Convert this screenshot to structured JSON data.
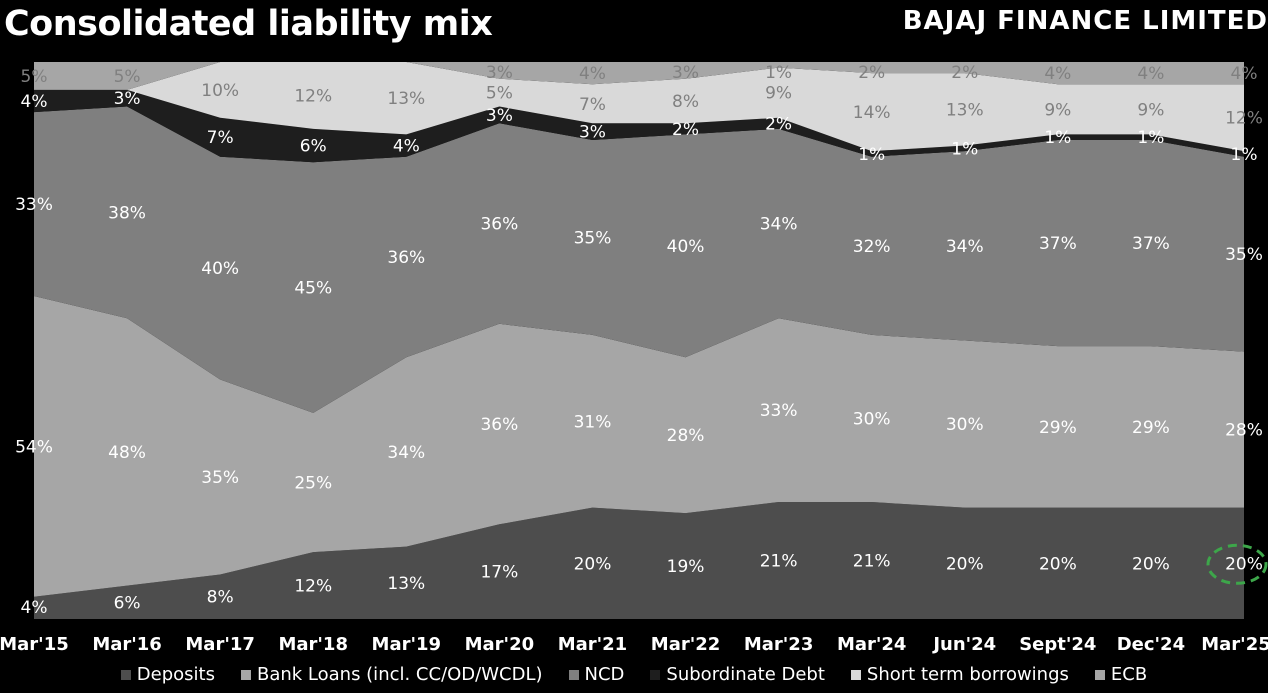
{
  "header": {
    "title": "Consolidated liability mix",
    "brand": "BAJAJ FINANCE LIMITED"
  },
  "chart_data": {
    "type": "area",
    "stacked": true,
    "normalized_percent": true,
    "categories": [
      "Mar'15",
      "Mar'16",
      "Mar'17",
      "Mar'18",
      "Mar'19",
      "Mar'20",
      "Mar'21",
      "Mar'22",
      "Mar'23",
      "Mar'24",
      "Jun'24",
      "Sept'24",
      "Dec'24",
      "Mar'25"
    ],
    "series": [
      {
        "name": "Deposits",
        "color": "#4d4d4d",
        "label_color": "#ffffff",
        "values": [
          4,
          6,
          8,
          12,
          13,
          17,
          20,
          19,
          21,
          21,
          20,
          20,
          20,
          20
        ],
        "labels": [
          "4%",
          "6%",
          "8%",
          "12%",
          "13%",
          "17%",
          "20%",
          "19%",
          "21%",
          "21%",
          "20%",
          "20%",
          "20%",
          "20%"
        ]
      },
      {
        "name": "Bank Loans (incl. CC/OD/WCDL)",
        "color": "#a6a6a6",
        "label_color": "#ffffff",
        "values": [
          54,
          48,
          35,
          25,
          34,
          36,
          31,
          28,
          33,
          30,
          30,
          29,
          29,
          28
        ],
        "labels": [
          "54%",
          "48%",
          "35%",
          "25%",
          "34%",
          "36%",
          "31%",
          "28%",
          "33%",
          "30%",
          "30%",
          "29%",
          "29%",
          "28%"
        ]
      },
      {
        "name": "NCD",
        "color": "#7f7f7f",
        "label_color": "#ffffff",
        "values": [
          33,
          38,
          40,
          45,
          36,
          36,
          35,
          40,
          34,
          32,
          34,
          37,
          37,
          35
        ],
        "labels": [
          "33%",
          "38%",
          "40%",
          "45%",
          "36%",
          "36%",
          "35%",
          "40%",
          "34%",
          "32%",
          "34%",
          "37%",
          "37%",
          "35%"
        ]
      },
      {
        "name": "Subordinate Debt",
        "color": "#1e1e1e",
        "label_color": "#ffffff",
        "values": [
          4,
          3,
          7,
          6,
          4,
          3,
          3,
          2,
          2,
          1,
          1,
          1,
          1,
          1
        ],
        "labels": [
          "4%",
          "3%",
          "7%",
          "6%",
          "4%",
          "3%",
          "3%",
          "2%",
          "2%",
          "1%",
          "1%",
          "1%",
          "1%",
          "1%"
        ]
      },
      {
        "name": "Short term borrowings",
        "color": "#d9d9d9",
        "label_color": "#808080",
        "values": [
          0,
          0,
          10,
          12,
          13,
          5,
          7,
          8,
          9,
          14,
          13,
          9,
          9,
          12
        ],
        "labels": [
          "",
          "",
          "10%",
          "12%",
          "13%",
          "5%",
          "7%",
          "8%",
          "9%",
          "14%",
          "13%",
          "9%",
          "9%",
          "12%"
        ]
      },
      {
        "name": "ECB",
        "color": "#a6a6a6",
        "label_color": "#808080",
        "values": [
          5,
          5,
          0,
          0,
          0,
          3,
          4,
          3,
          1,
          2,
          2,
          4,
          4,
          4
        ],
        "labels": [
          "5%",
          "5%",
          "",
          "",
          "",
          "3%",
          "4%",
          "3%",
          "1%",
          "2%",
          "2%",
          "4%",
          "4%",
          "4%"
        ]
      }
    ],
    "ylim": [
      0,
      100
    ],
    "highlight": {
      "category": "Mar'25",
      "series": "Deposits",
      "style": "dashed green ellipse",
      "color": "#3da64a"
    },
    "legend_position": "bottom"
  }
}
